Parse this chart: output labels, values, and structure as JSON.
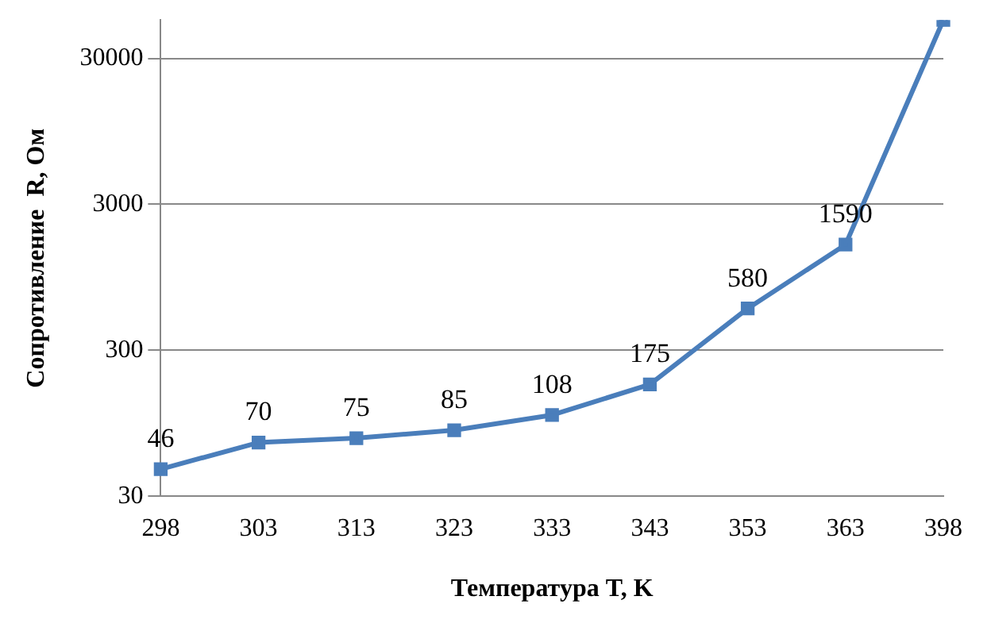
{
  "chart_data": {
    "type": "line",
    "xlabel": "Температура T, K",
    "ylabel": "Сопротивление  R, Ом",
    "categories": [
      "298",
      "303",
      "313",
      "323",
      "333",
      "343",
      "353",
      "363",
      "398"
    ],
    "series": [
      {
        "color": "#4a7ebb",
        "values": [
          46,
          70,
          75,
          85,
          108,
          175,
          580,
          1590,
          55000
        ],
        "value_labels": [
          "46",
          "70",
          "75",
          "85",
          "108",
          "175",
          "580",
          "1590",
          null
        ]
      }
    ],
    "log": "y",
    "ylim": [
      30,
      55000
    ],
    "yticks": [
      30,
      300,
      3000,
      30000
    ],
    "grid": "y",
    "legend": false,
    "marker": "square",
    "line_style": "solid"
  }
}
